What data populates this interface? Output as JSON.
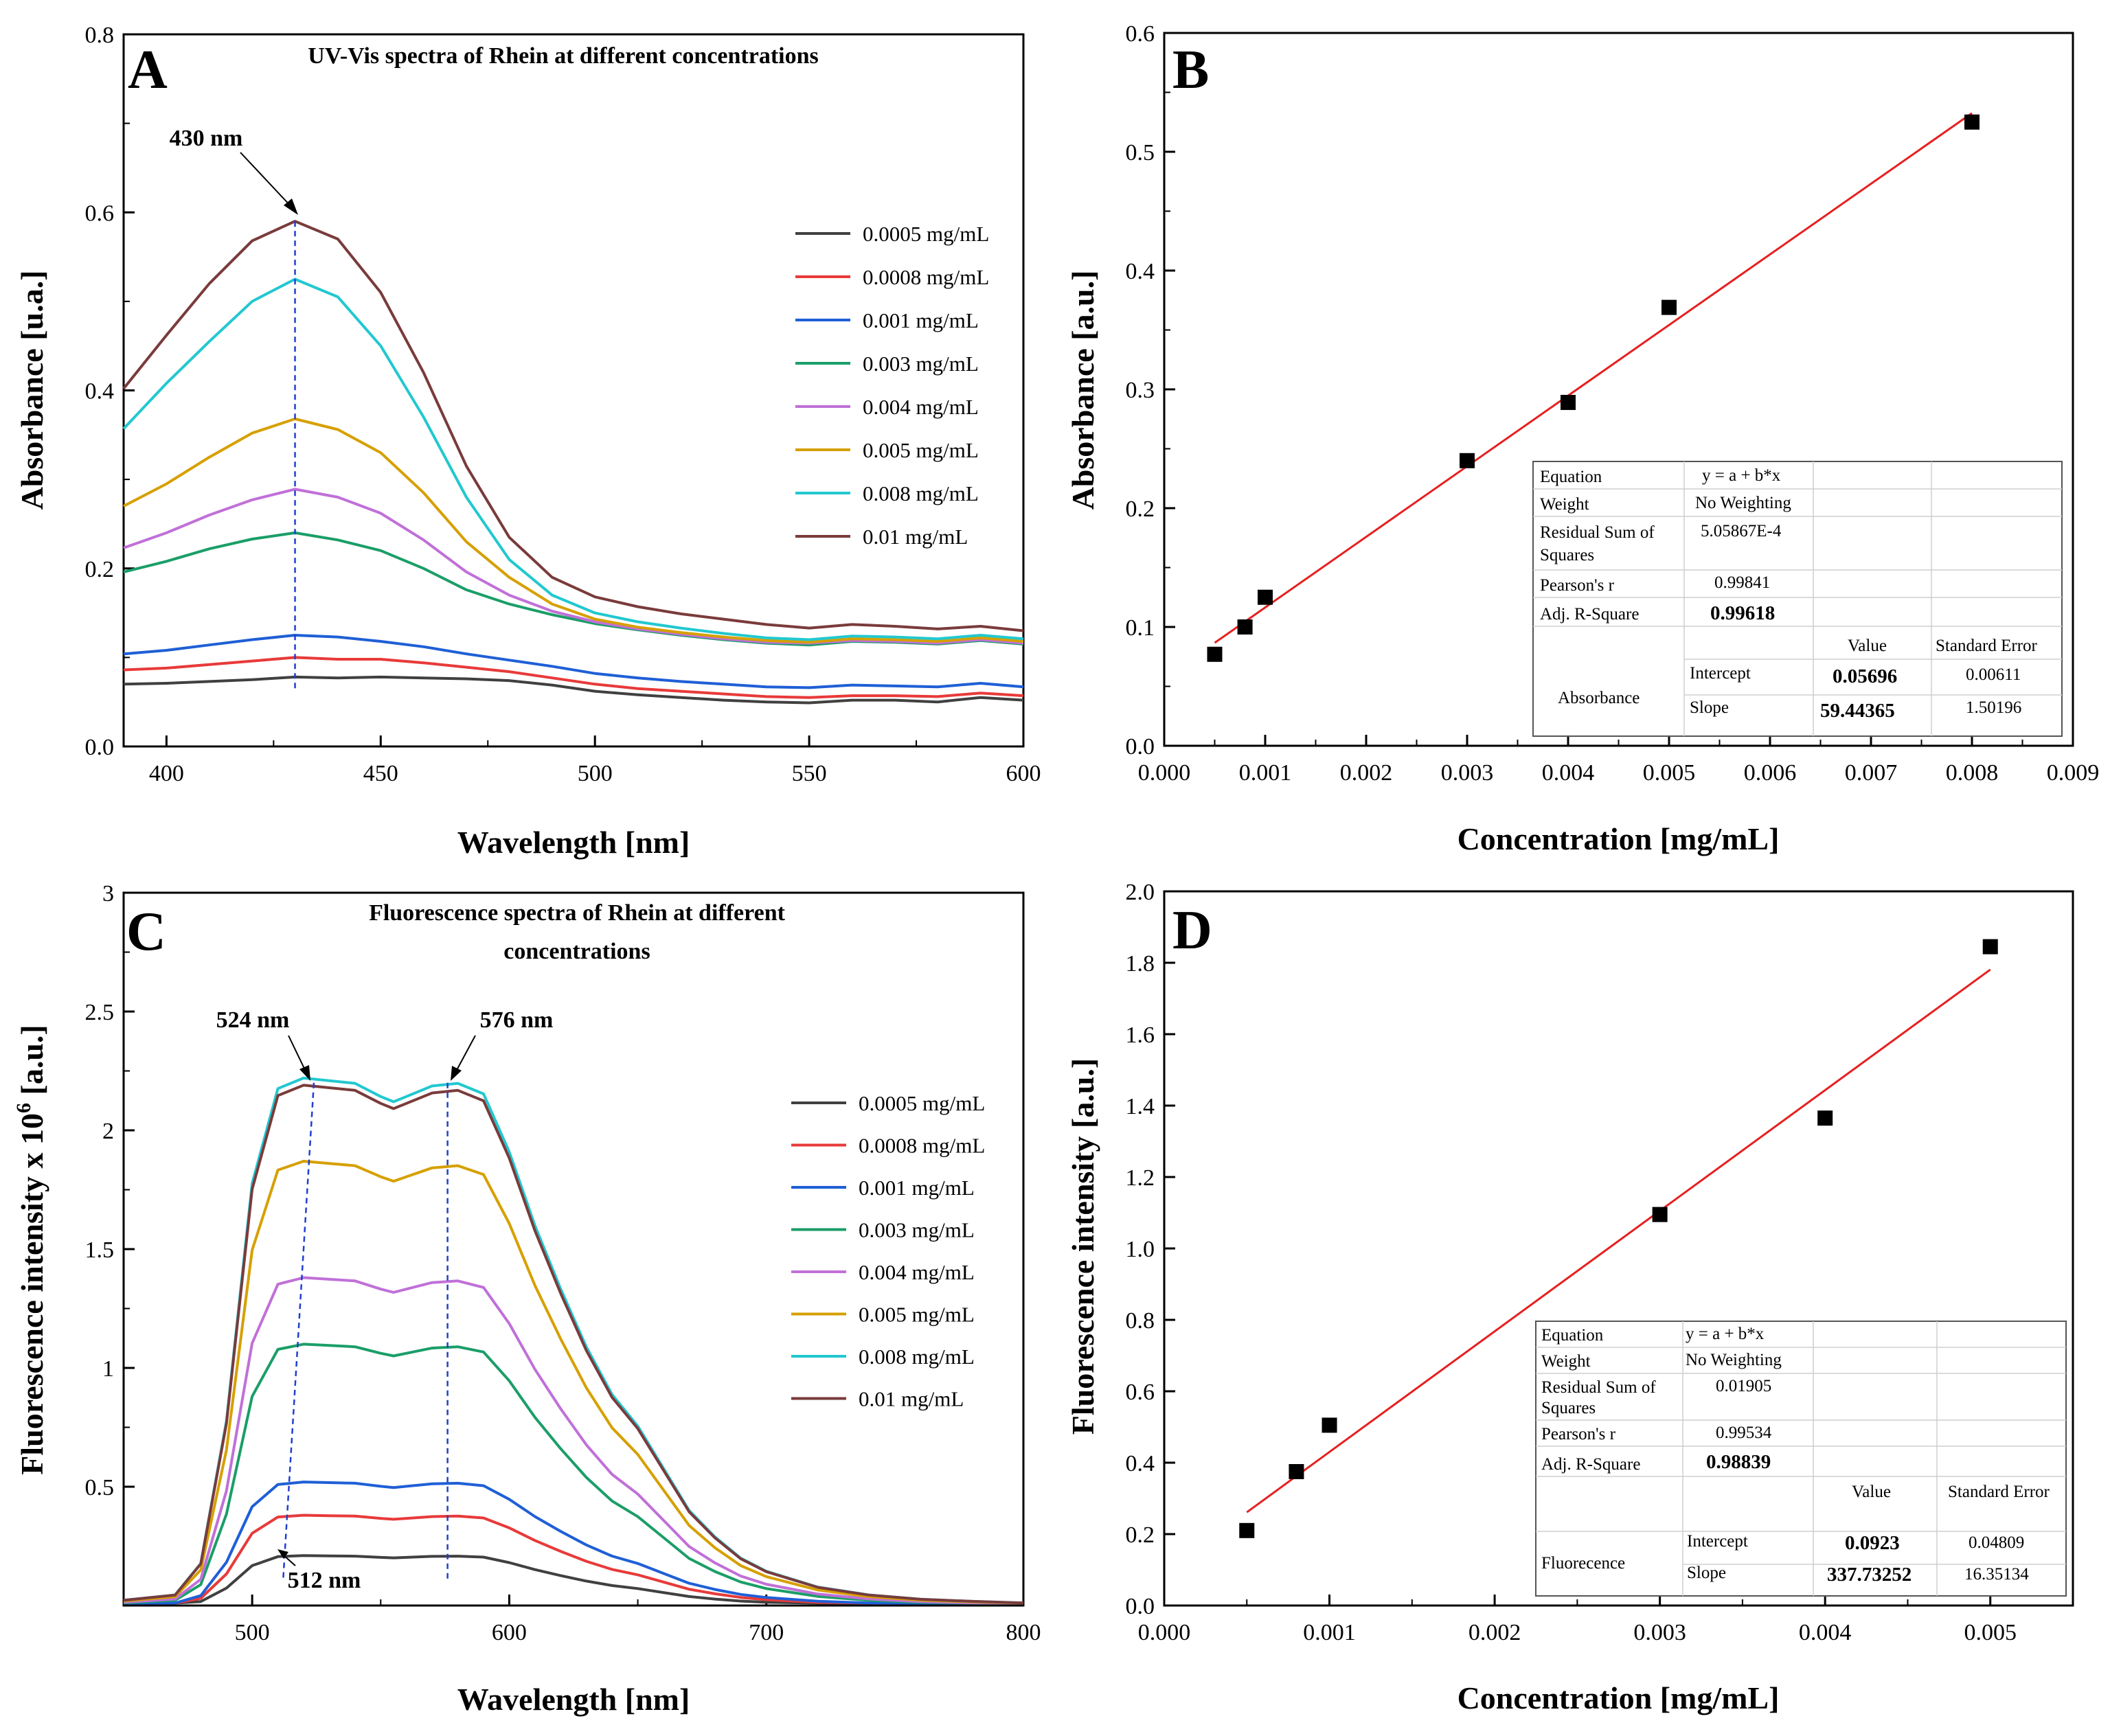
{
  "chart_data": [
    {
      "panel": "A",
      "type": "line",
      "title": "UV-Vis spectra of Rhein at different concentrations",
      "xlabel": "Wavelength [nm]",
      "ylabel": "Absorbance [u.a.]",
      "xlim": [
        390,
        600
      ],
      "ylim": [
        0,
        0.8
      ],
      "xticks": [
        400,
        450,
        500,
        550,
        600
      ],
      "yticks": [
        0.0,
        0.2,
        0.4,
        0.6,
        0.8
      ],
      "xtick_labels": [
        "400",
        "450",
        "500",
        "550",
        "600"
      ],
      "ytick_labels": [
        "0.0",
        "0.2",
        "0.4",
        "0.6",
        "0.8"
      ],
      "legend_position": "right",
      "annotations": [
        {
          "text": "430 nm",
          "x": 430
        }
      ],
      "marker_line_x": 430,
      "x": [
        390,
        400,
        410,
        420,
        430,
        440,
        450,
        460,
        470,
        480,
        490,
        500,
        510,
        520,
        530,
        540,
        550,
        560,
        570,
        580,
        590,
        600
      ],
      "series": [
        {
          "name": "0.0005 mg/mL",
          "color": "#404040",
          "values": [
            0.07,
            0.071,
            0.073,
            0.075,
            0.078,
            0.077,
            0.078,
            0.077,
            0.076,
            0.074,
            0.069,
            0.062,
            0.058,
            0.055,
            0.052,
            0.05,
            0.049,
            0.052,
            0.052,
            0.05,
            0.055,
            0.052
          ]
        },
        {
          "name": "0.0008 mg/mL",
          "color": "#e83a3a",
          "values": [
            0.086,
            0.088,
            0.092,
            0.096,
            0.1,
            0.098,
            0.098,
            0.094,
            0.089,
            0.084,
            0.077,
            0.07,
            0.065,
            0.062,
            0.059,
            0.056,
            0.055,
            0.057,
            0.057,
            0.056,
            0.06,
            0.057
          ]
        },
        {
          "name": "0.001 mg/mL",
          "color": "#1f5fd6",
          "values": [
            0.104,
            0.108,
            0.114,
            0.12,
            0.125,
            0.123,
            0.118,
            0.112,
            0.104,
            0.097,
            0.09,
            0.082,
            0.077,
            0.073,
            0.07,
            0.067,
            0.066,
            0.069,
            0.068,
            0.067,
            0.071,
            0.067
          ]
        },
        {
          "name": "0.003 mg/mL",
          "color": "#1a9e68",
          "values": [
            0.196,
            0.208,
            0.222,
            0.233,
            0.24,
            0.232,
            0.22,
            0.2,
            0.176,
            0.16,
            0.148,
            0.138,
            0.131,
            0.125,
            0.12,
            0.116,
            0.114,
            0.118,
            0.117,
            0.115,
            0.119,
            0.115
          ]
        },
        {
          "name": "0.004 mg/mL",
          "color": "#c070d8",
          "values": [
            0.223,
            0.24,
            0.26,
            0.277,
            0.289,
            0.28,
            0.262,
            0.232,
            0.196,
            0.17,
            0.152,
            0.14,
            0.132,
            0.126,
            0.121,
            0.117,
            0.116,
            0.119,
            0.118,
            0.116,
            0.12,
            0.116
          ]
        },
        {
          "name": "0.005 mg/mL",
          "color": "#d6a000",
          "values": [
            0.27,
            0.295,
            0.325,
            0.352,
            0.368,
            0.356,
            0.33,
            0.285,
            0.23,
            0.19,
            0.16,
            0.143,
            0.134,
            0.128,
            0.123,
            0.119,
            0.117,
            0.121,
            0.12,
            0.118,
            0.122,
            0.118
          ]
        },
        {
          "name": "0.008 mg/mL",
          "color": "#22c8d0",
          "values": [
            0.357,
            0.408,
            0.455,
            0.5,
            0.525,
            0.505,
            0.45,
            0.37,
            0.28,
            0.21,
            0.17,
            0.15,
            0.14,
            0.133,
            0.127,
            0.122,
            0.12,
            0.124,
            0.123,
            0.121,
            0.125,
            0.121
          ]
        },
        {
          "name": "0.01 mg/mL",
          "color": "#7a3b3b",
          "values": [
            0.402,
            0.462,
            0.52,
            0.568,
            0.59,
            0.57,
            0.51,
            0.42,
            0.315,
            0.235,
            0.19,
            0.168,
            0.157,
            0.149,
            0.143,
            0.137,
            0.133,
            0.137,
            0.135,
            0.132,
            0.135,
            0.13
          ]
        }
      ]
    },
    {
      "panel": "B",
      "type": "scatter",
      "title": "",
      "xlabel": "Concentration [mg/mL]",
      "ylabel": "Absorbance [a.u.]",
      "xlim": [
        0.0,
        0.009
      ],
      "ylim": [
        0.0,
        0.6
      ],
      "xticks": [
        0.0,
        0.001,
        0.002,
        0.003,
        0.004,
        0.005,
        0.006,
        0.007,
        0.008,
        0.009
      ],
      "yticks": [
        0.0,
        0.1,
        0.2,
        0.3,
        0.4,
        0.5,
        0.6
      ],
      "xtick_labels": [
        "0.000",
        "0.001",
        "0.002",
        "0.003",
        "0.004",
        "0.005",
        "0.006",
        "0.007",
        "0.008",
        "0.009"
      ],
      "ytick_labels": [
        "0.0",
        "0.1",
        "0.2",
        "0.3",
        "0.4",
        "0.5",
        "0.6"
      ],
      "points": {
        "x": [
          0.0005,
          0.0008,
          0.001,
          0.003,
          0.004,
          0.005,
          0.008
        ],
        "y": [
          0.077,
          0.1,
          0.125,
          0.24,
          0.289,
          0.369,
          0.525
        ]
      },
      "fit": {
        "intercept": 0.05696,
        "slope": 59.44365,
        "x_range": [
          0.0005,
          0.008
        ],
        "color": "#e62020"
      },
      "fit_table": {
        "equation_label": "Equation",
        "equation_value": "y = a + b*x",
        "weight_label": "Weight",
        "weight_value": "No Weighting",
        "rss_label_1": "Residual Sum of",
        "rss_label_2": "Squares",
        "rss_value": "5.05867E-4",
        "pearson_label": "Pearson's r",
        "pearson_value": "0.99841",
        "adjr_label": "Adj. R-Square",
        "adjr_value": "0.99618",
        "value_header": "Value",
        "stderr_header": "Standard Error",
        "group_label": "Absorbance",
        "intercept_label": "Intercept",
        "intercept_value": "0.05696",
        "intercept_err": "0.00611",
        "slope_label": "Slope",
        "slope_value": "59.44365",
        "slope_err": "1.50196"
      }
    },
    {
      "panel": "C",
      "type": "line",
      "title_line1": "Fluorescence spectra of Rhein at different",
      "title_line2": "concentrations",
      "xlabel": "Wavelength [nm]",
      "ylabel_main": "Fluorescence intensity x 10",
      "ylabel_sup": "6",
      "ylabel_tail": " [a.u.]",
      "xlim": [
        450,
        800
      ],
      "ylim": [
        0,
        3
      ],
      "xticks": [
        500,
        600,
        700,
        800
      ],
      "yticks": [
        0.5,
        1,
        1.5,
        2,
        2.5,
        3
      ],
      "xtick_labels": [
        "500",
        "600",
        "700",
        "800"
      ],
      "ytick_labels": [
        "0.5",
        "1",
        "1.5",
        "2",
        "2.5",
        "3"
      ],
      "legend_position": "right",
      "annotations": [
        {
          "text": "524 nm",
          "x": 524
        },
        {
          "text": "576 nm",
          "x": 576
        },
        {
          "text": "512 nm",
          "x": 512
        }
      ],
      "x": [
        450,
        470,
        480,
        490,
        500,
        510,
        520,
        530,
        540,
        550,
        555,
        560,
        570,
        580,
        590,
        600,
        610,
        620,
        630,
        640,
        650,
        660,
        670,
        680,
        690,
        700,
        720,
        740,
        760,
        780,
        800
      ],
      "shape": [
        0.01,
        0.02,
        0.08,
        0.35,
        0.8,
        0.98,
        1.0,
        0.995,
        0.99,
        0.965,
        0.955,
        0.965,
        0.985,
        0.99,
        0.97,
        0.86,
        0.72,
        0.6,
        0.49,
        0.4,
        0.34,
        0.26,
        0.18,
        0.13,
        0.09,
        0.065,
        0.035,
        0.02,
        0.012,
        0.008,
        0.005
      ],
      "series": [
        {
          "name": "0.0005 mg/mL",
          "color": "#404040",
          "peak": 0.21
        },
        {
          "name": "0.0008 mg/mL",
          "color": "#e83a3a",
          "peak": 0.38
        },
        {
          "name": "0.001 mg/mL",
          "color": "#1f5fd6",
          "peak": 0.52
        },
        {
          "name": "0.003 mg/mL",
          "color": "#1a9e68",
          "peak": 1.1
        },
        {
          "name": "0.004 mg/mL",
          "color": "#c070d8",
          "peak": 1.38
        },
        {
          "name": "0.005 mg/mL",
          "color": "#d6a000",
          "peak": 1.87
        },
        {
          "name": "0.008 mg/mL",
          "color": "#22c8d0",
          "peak": 2.22
        },
        {
          "name": "0.01 mg/mL",
          "color": "#7a3b3b",
          "peak": 2.19
        }
      ]
    },
    {
      "panel": "D",
      "type": "scatter",
      "title": "",
      "xlabel": "Concentration [mg/mL]",
      "ylabel": "Fluorescence intensity [a.u.]",
      "xlim": [
        0.0,
        0.0055
      ],
      "ylim": [
        0.0,
        2.0
      ],
      "xticks": [
        0.0,
        0.001,
        0.002,
        0.003,
        0.004,
        0.005
      ],
      "yticks": [
        0.0,
        0.2,
        0.4,
        0.6,
        0.8,
        1.0,
        1.2,
        1.4,
        1.6,
        1.8,
        2.0
      ],
      "xtick_labels": [
        "0.000",
        "0.001",
        "0.002",
        "0.003",
        "0.004",
        "0.005"
      ],
      "ytick_labels": [
        "0.0",
        "0.2",
        "0.4",
        "0.6",
        "0.8",
        "1.0",
        "1.2",
        "1.4",
        "1.6",
        "1.8",
        "2.0"
      ],
      "points": {
        "x": [
          0.0005,
          0.0008,
          0.001,
          0.003,
          0.004,
          0.005
        ],
        "y": [
          0.21,
          0.375,
          0.505,
          1.095,
          1.365,
          1.845
        ]
      },
      "fit": {
        "intercept": 0.0923,
        "slope": 337.73252,
        "x_range": [
          0.0005,
          0.005
        ],
        "color": "#e62020"
      },
      "fit_table": {
        "equation_label": "Equation",
        "equation_value": "y = a + b*x",
        "weight_label": "Weight",
        "weight_value": "No Weighting",
        "rss_label_1": "Residual Sum of",
        "rss_label_2": "Squares",
        "rss_value": "0.01905",
        "pearson_label": "Pearson's r",
        "pearson_value": "0.99534",
        "adjr_label": "Adj. R-Square",
        "adjr_value": "0.98839",
        "value_header": "Value",
        "stderr_header": "Standard Error",
        "group_label": "Fluorecence",
        "intercept_label": "Intercept",
        "intercept_value": "0.0923",
        "intercept_err": "0.04809",
        "slope_label": "Slope",
        "slope_value": "337.73252",
        "slope_err": "16.35134"
      }
    }
  ]
}
